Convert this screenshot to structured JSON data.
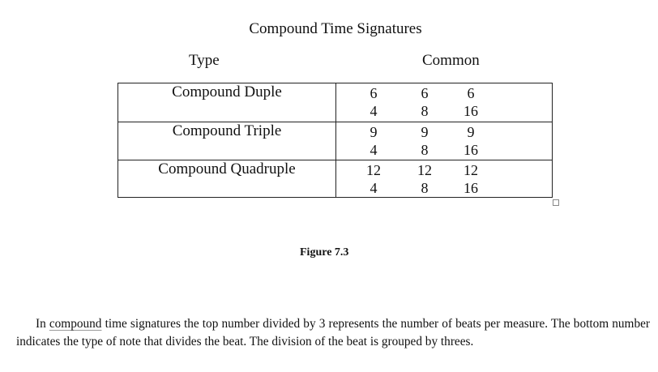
{
  "title": "Compound Time Signatures",
  "headers": {
    "type": "Type",
    "common": "Common"
  },
  "rows": [
    {
      "type": "Compound Duple",
      "signatures": [
        {
          "top": "6",
          "bottom": "4"
        },
        {
          "top": "6",
          "bottom": "8"
        },
        {
          "top": "6",
          "bottom": "16"
        }
      ]
    },
    {
      "type": "Compound Triple",
      "signatures": [
        {
          "top": "9",
          "bottom": "4"
        },
        {
          "top": "9",
          "bottom": "8"
        },
        {
          "top": "9",
          "bottom": "16"
        }
      ]
    },
    {
      "type": "Compound Quadruple",
      "signatures": [
        {
          "top": "12",
          "bottom": "4"
        },
        {
          "top": "12",
          "bottom": "8"
        },
        {
          "top": "12",
          "bottom": "16"
        }
      ]
    }
  ],
  "figure_caption": "Figure 7.3",
  "paragraph": {
    "before": "In ",
    "link": "compound",
    "after": " time signatures the top number divided by 3 represents the number of beats per measure. The bottom number indicates the type of note that divides the beat. The division of the beat is grouped by threes."
  }
}
